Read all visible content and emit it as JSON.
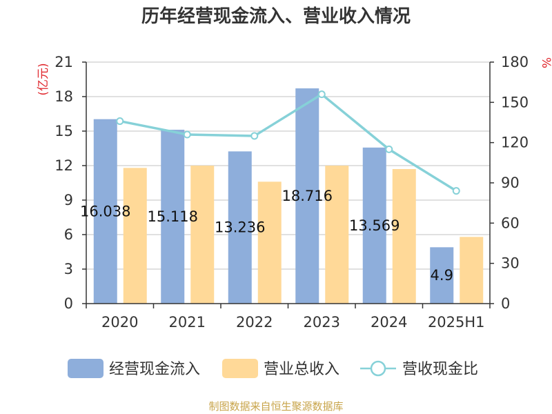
{
  "chart_data": {
    "type": "bar",
    "title": "历年经营现金流入、营业收入情况",
    "categories": [
      "2020",
      "2021",
      "2022",
      "2023",
      "2024",
      "2025H1"
    ],
    "left_axis": {
      "unit": "(亿元)",
      "min": 0,
      "max": 21,
      "ticks": [
        "0",
        "3",
        "6",
        "9",
        "12",
        "15",
        "18",
        "21"
      ]
    },
    "right_axis": {
      "unit": "%",
      "min": 0,
      "max": 180,
      "ticks": [
        "0",
        "30",
        "60",
        "90",
        "120",
        "150",
        "180"
      ]
    },
    "series": [
      {
        "name": "经营现金流入",
        "type": "bar",
        "axis": "left",
        "color": "#8eaedb",
        "values": [
          16.038,
          15.118,
          13.236,
          18.716,
          13.569,
          4.9
        ],
        "labels": [
          "16.038",
          "15.118",
          "13.236",
          "18.716",
          "13.569",
          "4.9"
        ]
      },
      {
        "name": "营业总收入",
        "type": "bar",
        "axis": "left",
        "color": "#ffd998",
        "values": [
          11.8,
          12.0,
          10.6,
          12.0,
          11.7,
          5.8
        ]
      },
      {
        "name": "营收现金比",
        "type": "line",
        "axis": "right",
        "color": "#86d1d8",
        "values": [
          136,
          126,
          125,
          156,
          115,
          84
        ]
      }
    ],
    "grid": true,
    "legend_position": "bottom"
  },
  "source": "制图数据来自恒生聚源数据库"
}
